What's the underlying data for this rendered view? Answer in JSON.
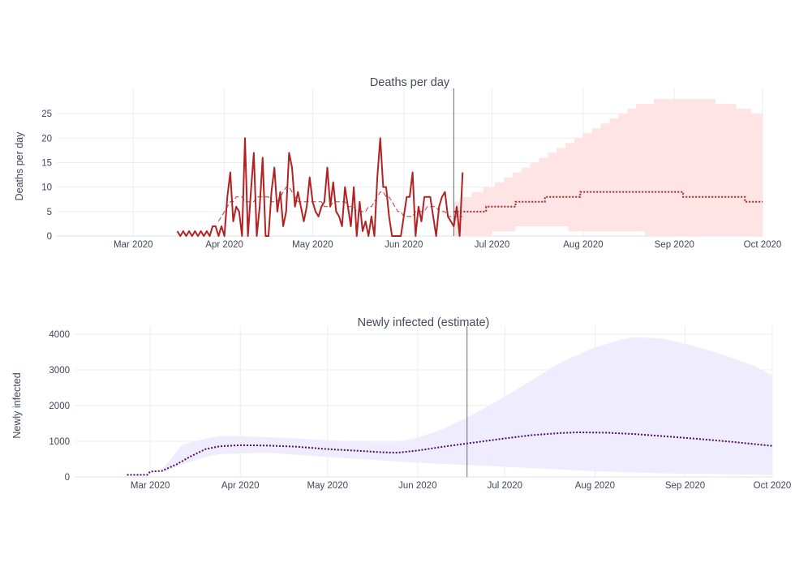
{
  "chart_data": [
    {
      "type": "line",
      "title": "Deaths per day",
      "xlabel": "",
      "ylabel": "Deaths per day",
      "x_axis": "date",
      "xlim": [
        "2020-02-04",
        "2020-10-01"
      ],
      "ylim": [
        0,
        28.5
      ],
      "yticks": [
        0,
        5,
        10,
        15,
        20,
        25
      ],
      "xticks": [
        {
          "date": "2020-03-01",
          "label": "Mar 2020"
        },
        {
          "date": "2020-04-01",
          "label": "Apr 2020"
        },
        {
          "date": "2020-05-01",
          "label": "May 2020"
        },
        {
          "date": "2020-06-01",
          "label": "Jun 2020"
        },
        {
          "date": "2020-07-01",
          "label": "Jul 2020"
        },
        {
          "date": "2020-08-01",
          "label": "Aug 2020"
        },
        {
          "date": "2020-09-01",
          "label": "Sep 2020"
        },
        {
          "date": "2020-10-01",
          "label": "Oct 2020"
        }
      ],
      "grid": true,
      "legend": "none",
      "divider_date": "2020-06-18",
      "colors": {
        "observed": "#b22222",
        "band": "#ffe4e6",
        "projection": "#b22222"
      },
      "observed": {
        "start_date": "2020-03-16",
        "values": [
          1,
          0,
          1,
          0,
          1,
          0,
          1,
          0,
          1,
          0,
          1,
          0,
          2,
          2,
          0,
          2,
          0,
          8,
          13,
          3,
          6,
          5,
          0,
          20,
          0,
          9,
          17,
          0,
          6,
          16,
          0,
          0,
          9,
          14,
          5,
          9,
          2,
          5,
          17,
          14,
          6,
          9,
          6,
          3,
          6,
          12,
          7,
          5,
          4,
          6,
          7,
          14,
          6,
          11,
          5,
          4,
          2,
          10,
          6,
          2,
          10,
          0,
          7,
          1,
          3,
          0,
          4,
          0,
          12,
          20,
          10,
          10,
          4,
          0,
          0,
          0,
          0,
          4,
          8,
          8,
          13,
          0,
          6,
          3,
          8,
          8,
          8,
          4,
          0,
          6,
          8,
          9,
          4,
          3,
          2,
          6,
          0,
          13
        ],
        "smoothed_start_date": "2020-03-30",
        "smoothed": [
          3,
          4,
          5,
          6,
          7,
          7,
          8,
          8,
          8,
          7,
          7,
          7,
          7,
          8,
          8,
          8,
          8,
          8,
          7,
          7,
          7,
          8,
          9,
          10,
          10,
          9,
          8,
          7,
          7,
          7,
          7,
          7,
          7,
          7,
          7,
          7,
          6,
          6,
          6,
          7,
          7,
          7,
          7,
          7,
          6,
          6,
          6,
          5,
          5,
          5,
          5,
          6,
          6,
          7,
          8,
          9,
          9,
          8,
          8,
          7,
          6,
          5,
          5,
          4,
          4,
          4,
          4,
          5,
          5,
          5,
          5,
          6,
          6,
          6,
          6,
          5,
          5,
          5,
          4,
          4,
          4,
          4,
          4,
          4
        ]
      },
      "projection": {
        "median": [
          {
            "date": "2020-06-18",
            "value": 5
          },
          {
            "date": "2020-06-29",
            "value": 6
          },
          {
            "date": "2020-07-09",
            "value": 7
          },
          {
            "date": "2020-07-19",
            "value": 8
          },
          {
            "date": "2020-07-31",
            "value": 9
          },
          {
            "date": "2020-09-04",
            "value": 8
          },
          {
            "date": "2020-09-25",
            "value": 7
          },
          {
            "date": "2020-10-01",
            "value": 7
          }
        ],
        "band_upper": [
          {
            "date": "2020-06-18",
            "value": 7
          },
          {
            "date": "2020-06-20",
            "value": 8
          },
          {
            "date": "2020-06-24",
            "value": 9
          },
          {
            "date": "2020-06-28",
            "value": 10
          },
          {
            "date": "2020-07-02",
            "value": 11
          },
          {
            "date": "2020-07-05",
            "value": 12
          },
          {
            "date": "2020-07-08",
            "value": 13
          },
          {
            "date": "2020-07-11",
            "value": 14
          },
          {
            "date": "2020-07-14",
            "value": 15
          },
          {
            "date": "2020-07-17",
            "value": 16
          },
          {
            "date": "2020-07-20",
            "value": 17
          },
          {
            "date": "2020-07-23",
            "value": 18
          },
          {
            "date": "2020-07-26",
            "value": 19
          },
          {
            "date": "2020-07-29",
            "value": 20
          },
          {
            "date": "2020-08-01",
            "value": 21
          },
          {
            "date": "2020-08-04",
            "value": 22
          },
          {
            "date": "2020-08-07",
            "value": 23
          },
          {
            "date": "2020-08-10",
            "value": 24
          },
          {
            "date": "2020-08-13",
            "value": 25
          },
          {
            "date": "2020-08-16",
            "value": 26
          },
          {
            "date": "2020-08-19",
            "value": 27
          },
          {
            "date": "2020-08-25",
            "value": 28
          },
          {
            "date": "2020-09-15",
            "value": 27
          },
          {
            "date": "2020-09-22",
            "value": 26
          },
          {
            "date": "2020-09-27",
            "value": 25
          },
          {
            "date": "2020-10-01",
            "value": 25
          }
        ],
        "band_lower": [
          {
            "date": "2020-06-18",
            "value": 0
          },
          {
            "date": "2020-07-01",
            "value": 1
          },
          {
            "date": "2020-07-09",
            "value": 2
          },
          {
            "date": "2020-07-27",
            "value": 1
          },
          {
            "date": "2020-08-22",
            "value": 0
          },
          {
            "date": "2020-10-01",
            "value": 0
          }
        ]
      }
    },
    {
      "type": "line",
      "title": "Newly infected (estimate)",
      "xlabel": "",
      "ylabel": "Newly infected",
      "x_axis": "date",
      "xlim": [
        "2020-02-04",
        "2020-10-01"
      ],
      "ylim": [
        0,
        4000
      ],
      "yticks": [
        0,
        1000,
        2000,
        3000,
        4000
      ],
      "xticks": [
        {
          "date": "2020-03-01",
          "label": "Mar 2020"
        },
        {
          "date": "2020-04-01",
          "label": "Apr 2020"
        },
        {
          "date": "2020-05-01",
          "label": "May 2020"
        },
        {
          "date": "2020-06-01",
          "label": "Jun 2020"
        },
        {
          "date": "2020-07-01",
          "label": "Jul 2020"
        },
        {
          "date": "2020-08-01",
          "label": "Aug 2020"
        },
        {
          "date": "2020-09-01",
          "label": "Sep 2020"
        },
        {
          "date": "2020-10-01",
          "label": "Oct 2020"
        }
      ],
      "grid": true,
      "legend": "none",
      "divider_date": "2020-06-18",
      "colors": {
        "median": "#4b0f6b",
        "band": "#efecfd"
      },
      "median": [
        {
          "date": "2020-02-22",
          "value": 60
        },
        {
          "date": "2020-02-29",
          "value": 60
        },
        {
          "date": "2020-03-01",
          "value": 150
        },
        {
          "date": "2020-03-05",
          "value": 170
        },
        {
          "date": "2020-03-10",
          "value": 350
        },
        {
          "date": "2020-03-15",
          "value": 580
        },
        {
          "date": "2020-03-20",
          "value": 780
        },
        {
          "date": "2020-03-25",
          "value": 860
        },
        {
          "date": "2020-04-01",
          "value": 890
        },
        {
          "date": "2020-04-10",
          "value": 880
        },
        {
          "date": "2020-04-20",
          "value": 850
        },
        {
          "date": "2020-05-01",
          "value": 780
        },
        {
          "date": "2020-05-10",
          "value": 740
        },
        {
          "date": "2020-05-20",
          "value": 690
        },
        {
          "date": "2020-05-25",
          "value": 680
        },
        {
          "date": "2020-06-01",
          "value": 740
        },
        {
          "date": "2020-06-10",
          "value": 850
        },
        {
          "date": "2020-06-20",
          "value": 960
        },
        {
          "date": "2020-07-01",
          "value": 1080
        },
        {
          "date": "2020-07-10",
          "value": 1170
        },
        {
          "date": "2020-07-20",
          "value": 1230
        },
        {
          "date": "2020-07-26",
          "value": 1250
        },
        {
          "date": "2020-08-05",
          "value": 1240
        },
        {
          "date": "2020-08-15",
          "value": 1200
        },
        {
          "date": "2020-08-25",
          "value": 1140
        },
        {
          "date": "2020-09-05",
          "value": 1070
        },
        {
          "date": "2020-09-15",
          "value": 1000
        },
        {
          "date": "2020-09-25",
          "value": 920
        },
        {
          "date": "2020-10-01",
          "value": 870
        }
      ],
      "band_upper": [
        {
          "date": "2020-03-05",
          "value": 200
        },
        {
          "date": "2020-03-12",
          "value": 900
        },
        {
          "date": "2020-03-20",
          "value": 1070
        },
        {
          "date": "2020-03-25",
          "value": 1150
        },
        {
          "date": "2020-04-05",
          "value": 1130
        },
        {
          "date": "2020-04-20",
          "value": 1080
        },
        {
          "date": "2020-05-01",
          "value": 1030
        },
        {
          "date": "2020-05-15",
          "value": 980
        },
        {
          "date": "2020-05-25",
          "value": 980
        },
        {
          "date": "2020-06-01",
          "value": 1100
        },
        {
          "date": "2020-06-10",
          "value": 1350
        },
        {
          "date": "2020-06-20",
          "value": 1750
        },
        {
          "date": "2020-07-01",
          "value": 2250
        },
        {
          "date": "2020-07-10",
          "value": 2700
        },
        {
          "date": "2020-07-20",
          "value": 3200
        },
        {
          "date": "2020-07-31",
          "value": 3600
        },
        {
          "date": "2020-08-10",
          "value": 3850
        },
        {
          "date": "2020-08-15",
          "value": 3920
        },
        {
          "date": "2020-08-25",
          "value": 3870
        },
        {
          "date": "2020-09-05",
          "value": 3650
        },
        {
          "date": "2020-09-15",
          "value": 3400
        },
        {
          "date": "2020-09-25",
          "value": 3100
        },
        {
          "date": "2020-10-01",
          "value": 2850
        }
      ],
      "band_lower": [
        {
          "date": "2020-03-05",
          "value": 120
        },
        {
          "date": "2020-03-12",
          "value": 350
        },
        {
          "date": "2020-03-20",
          "value": 560
        },
        {
          "date": "2020-03-25",
          "value": 640
        },
        {
          "date": "2020-04-10",
          "value": 680
        },
        {
          "date": "2020-05-01",
          "value": 560
        },
        {
          "date": "2020-05-20",
          "value": 460
        },
        {
          "date": "2020-06-05",
          "value": 380
        },
        {
          "date": "2020-06-20",
          "value": 330
        },
        {
          "date": "2020-07-10",
          "value": 250
        },
        {
          "date": "2020-08-01",
          "value": 160
        },
        {
          "date": "2020-08-20",
          "value": 110
        },
        {
          "date": "2020-09-10",
          "value": 80
        },
        {
          "date": "2020-10-01",
          "value": 60
        }
      ]
    }
  ]
}
